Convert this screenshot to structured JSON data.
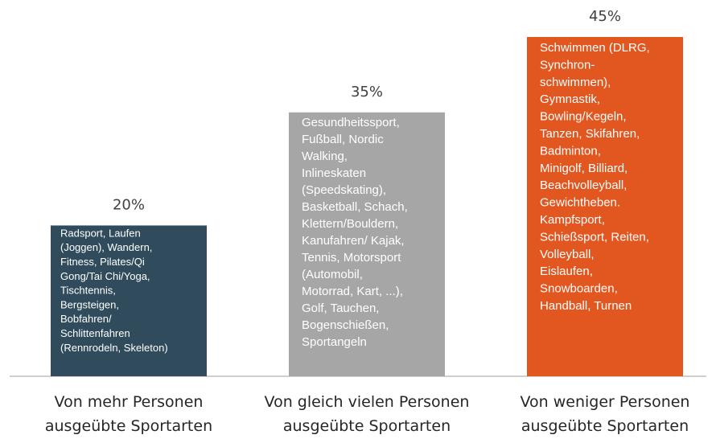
{
  "chart_data": {
    "type": "bar",
    "categories": [
      "Von mehr Personen ausgeübte Sportarten",
      "Von gleich vielen Personen ausgeübte Sportarten",
      "Von weniger Personen ausgeübte Sportarten"
    ],
    "values": [
      20,
      35,
      45
    ],
    "value_labels": [
      "20%",
      "35%",
      "45%"
    ],
    "colors": [
      "#2f4b5c",
      "#a6a6a6",
      "#e2561f"
    ],
    "ylim": [
      0,
      45
    ],
    "bar_texts": [
      [
        "Radsport, Laufen",
        "(Joggen), Wandern,",
        "Fitness, Pilates/Qi",
        "Gong/Tai Chi/Yoga,",
        "Tischtennis,",
        "Bergsteigen,",
        "Bobfahren/",
        "Schlittenfahren",
        "(Rennrodeln, Skeleton)"
      ],
      [
        "Gesundheitssport,",
        "Fußball, Nordic",
        "Walking,",
        "Inlineskaten",
        "(Speedskating),",
        "Basketball, Schach,",
        "Klettern/Bouldern,",
        "Kanufahren/ Kajak,",
        "Tennis, Motorsport",
        "(Automobil,",
        "Motorrad, Kart, ...),",
        "Golf, Tauchen,",
        "Bogenschießen,",
        "Sportangeln"
      ],
      [
        "Schwimmen (DLRG,",
        "Synchron-",
        "schwimmen),",
        "Gymnastik,",
        "Bowling/Kegeln,",
        "Tanzen, Skifahren,",
        "Badminton,",
        "Minigolf, Billiard,",
        "Beachvolleyball,",
        "Gewichtheben.",
        "Kampfsport,",
        "Schießsport, Reiten,",
        "Volleyball,",
        "Eislaufen,",
        "Snowboarden,",
        "Handball, Turnen"
      ]
    ]
  }
}
